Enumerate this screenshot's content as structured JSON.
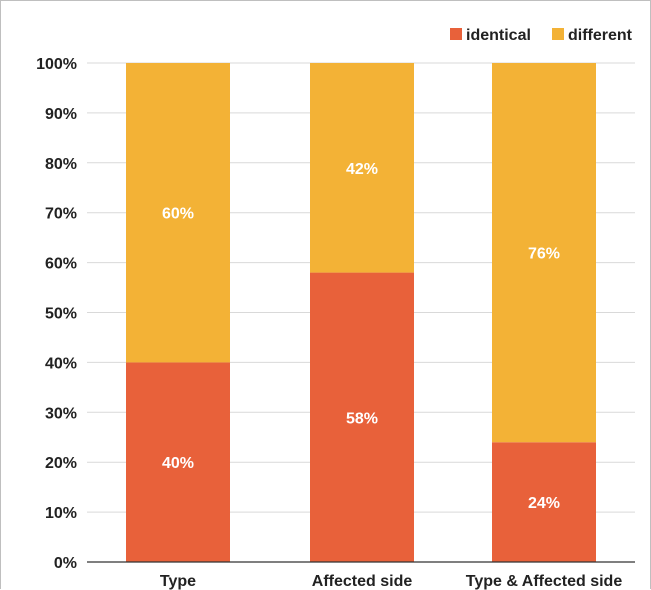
{
  "chart_data": {
    "type": "bar",
    "stacked": true,
    "categories": [
      "Type",
      "Affected side",
      "Type & Affected side"
    ],
    "series": [
      {
        "name": "identical",
        "color": "#E8613A",
        "values": [
          40,
          58,
          24
        ],
        "labels": [
          "40%",
          "58%",
          "24%"
        ]
      },
      {
        "name": "different",
        "color": "#F3B236",
        "values": [
          60,
          42,
          76
        ],
        "labels": [
          "60%",
          "42%",
          "76%"
        ]
      }
    ],
    "ylim": [
      0,
      100
    ],
    "yticks": [
      "0%",
      "10%",
      "20%",
      "30%",
      "40%",
      "50%",
      "60%",
      "70%",
      "80%",
      "90%",
      "100%"
    ],
    "title": "",
    "xlabel": "",
    "ylabel": "",
    "legend_position": "top-right",
    "grid": true
  }
}
